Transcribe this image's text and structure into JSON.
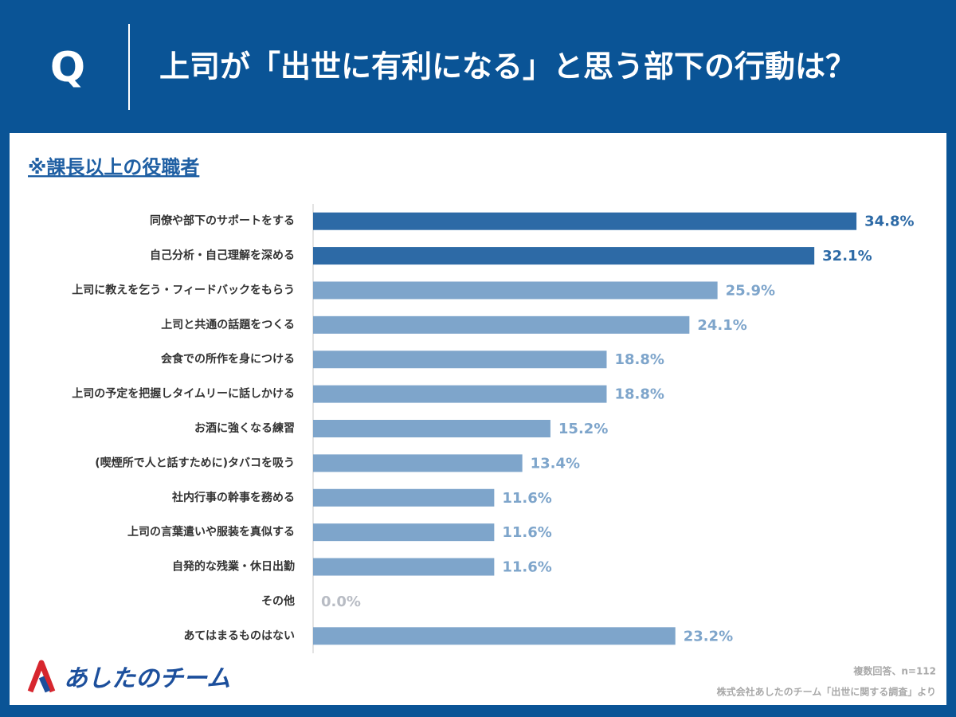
{
  "header": {
    "icon": "Q",
    "title": "上司が「出世に有利になる」と思う部下の行動は？"
  },
  "chart_data": {
    "type": "bar",
    "orientation": "horizontal",
    "subtitle": "※課長以上の役職者",
    "categories": [
      "同僚や部下のサポートをする",
      "自己分析・自己理解を深める",
      "上司に教えを乞う・フィードバックをもらう",
      "上司と共通の話題をつくる",
      "会食での所作を身につける",
      "上司の予定を把握しタイムリーに話しかける",
      "お酒に強くなる練習",
      "(喫煙所で人と話すために)タバコを吸う",
      "社内行事の幹事を務める",
      "上司の言葉遣いや服装を真似する",
      "自発的な残業・休日出勤",
      "その他",
      "あてはまるものはない"
    ],
    "values": [
      34.8,
      32.1,
      25.9,
      24.1,
      18.8,
      18.8,
      15.2,
      13.4,
      11.6,
      11.6,
      11.6,
      0,
      23.2
    ],
    "value_labels": [
      "34.8%",
      "32.1%",
      "25.9%",
      "24.1%",
      "18.8%",
      "18.8%",
      "15.2%",
      "13.4%",
      "11.6%",
      "11.6%",
      "11.6%",
      "0.0%",
      "23.2%"
    ],
    "colors": [
      "#2d6aa6",
      "#2d6aa6",
      "#7ea5cb",
      "#7ea5cb",
      "#7ea5cb",
      "#7ea5cb",
      "#7ea5cb",
      "#7ea5cb",
      "#7ea5cb",
      "#7ea5cb",
      "#7ea5cb",
      "#7ea5cb",
      "#7ea5cb"
    ],
    "label_colors": [
      "#2d6aa6",
      "#2d6aa6",
      "#7ea5cb",
      "#7ea5cb",
      "#7ea5cb",
      "#7ea5cb",
      "#7ea5cb",
      "#7ea5cb",
      "#7ea5cb",
      "#7ea5cb",
      "#7ea5cb",
      "#b8bcc4",
      "#7ea5cb"
    ],
    "xlim": [
      0,
      40
    ]
  },
  "footer": {
    "logo": "あしたのチーム",
    "note": "複数回答、n=112",
    "source": "株式会社あしたのチーム「出世に関する調査」より"
  }
}
